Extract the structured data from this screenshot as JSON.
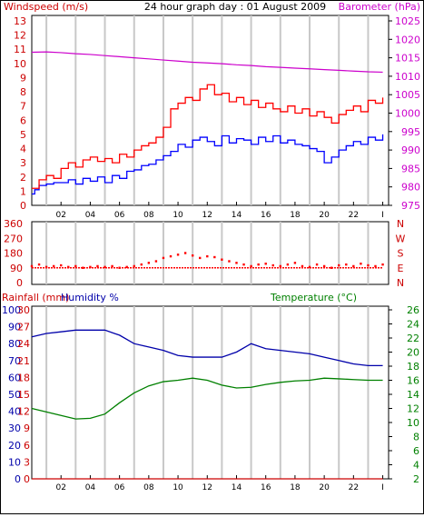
{
  "title": "24 hour graph day : 01 August 2009",
  "colors": {
    "windspeed": "#0000ff",
    "gust": "#ff0000",
    "barometer": "#cc00cc",
    "direction": "#ff0000",
    "humidity": "#0000aa",
    "temperature": "#008000",
    "rainfall": "#cc0000",
    "grid": "#c8c8c8",
    "panel_bg": "#ffffff"
  },
  "chart_data": [
    {
      "type": "line",
      "panel": "wind_baro",
      "title": "24 hour graph day : 01 August 2009",
      "left_label": "Windspeed (m/s)",
      "right_label": "Barometer (hPa)",
      "x_ticks": [
        "02",
        "04",
        "06",
        "08",
        "10",
        "12",
        "14",
        "16",
        "18",
        "20",
        "22",
        "I"
      ],
      "ylim_left": [
        0,
        13
      ],
      "yticks_left": [
        "0",
        "1",
        "2",
        "3",
        "4",
        "5",
        "6",
        "7",
        "8",
        "9",
        "10",
        "11",
        "12",
        "13"
      ],
      "ylim_right": [
        975,
        1025
      ],
      "yticks_right": [
        "975",
        "980",
        "985",
        "990",
        "995",
        "1000",
        "1005",
        "1010",
        "1015",
        "1020",
        "1025"
      ],
      "x_range_hours": [
        0,
        24.4
      ],
      "series": [
        {
          "name": "Windspeed (m/s)",
          "axis": "left",
          "color": "#0000ff",
          "step": true,
          "x": [
            0,
            0.2,
            0.5,
            1,
            1.5,
            2,
            2.5,
            3,
            3.5,
            4,
            4.5,
            5,
            5.5,
            6,
            6.5,
            7,
            7.5,
            8,
            8.5,
            9,
            9.5,
            10,
            10.5,
            11,
            11.5,
            12,
            12.5,
            13,
            13.5,
            14,
            14.5,
            15,
            15.5,
            16,
            16.5,
            17,
            17.5,
            18,
            18.5,
            19,
            19.5,
            20,
            20.5,
            21,
            21.5,
            22,
            22.5,
            23,
            23.5,
            24
          ],
          "values": [
            0.8,
            1.1,
            1.4,
            1.5,
            1.6,
            1.6,
            1.8,
            1.5,
            1.9,
            1.7,
            2.0,
            1.6,
            2.1,
            1.9,
            2.4,
            2.5,
            2.8,
            2.9,
            3.2,
            3.5,
            3.8,
            4.3,
            4.1,
            4.6,
            4.8,
            4.5,
            4.2,
            4.9,
            4.4,
            4.7,
            4.6,
            4.3,
            4.8,
            4.5,
            4.9,
            4.4,
            4.6,
            4.3,
            4.2,
            4.0,
            3.8,
            3.0,
            3.4,
            3.9,
            4.2,
            4.5,
            4.3,
            4.8,
            4.6,
            5.0
          ]
        },
        {
          "name": "Gust (m/s)",
          "axis": "left",
          "color": "#ff0000",
          "step": true,
          "x": [
            0,
            0.5,
            1,
            1.5,
            2,
            2.5,
            3,
            3.5,
            4,
            4.5,
            5,
            5.5,
            6,
            6.5,
            7,
            7.5,
            8,
            8.5,
            9,
            9.5,
            10,
            10.5,
            11,
            11.5,
            12,
            12.5,
            13,
            13.5,
            14,
            14.5,
            15,
            15.5,
            16,
            16.5,
            17,
            17.5,
            18,
            18.5,
            19,
            19.5,
            20,
            20.5,
            21,
            21.5,
            22,
            22.5,
            23,
            23.5,
            24
          ],
          "values": [
            1.2,
            1.8,
            2.1,
            1.9,
            2.6,
            3.0,
            2.7,
            3.2,
            3.4,
            3.1,
            3.3,
            3.0,
            3.6,
            3.4,
            3.9,
            4.2,
            4.4,
            4.8,
            5.5,
            6.8,
            7.2,
            7.6,
            7.4,
            8.2,
            8.5,
            7.8,
            7.9,
            7.3,
            7.6,
            7.1,
            7.4,
            6.9,
            7.2,
            6.8,
            6.6,
            7.0,
            6.5,
            6.8,
            6.3,
            6.6,
            6.2,
            5.8,
            6.4,
            6.7,
            7.0,
            6.6,
            7.4,
            7.2,
            7.6
          ]
        },
        {
          "name": "Barometer (hPa)",
          "axis": "right",
          "color": "#cc00cc",
          "step": false,
          "x": [
            0,
            1,
            2,
            3,
            4,
            5,
            6,
            7,
            8,
            9,
            10,
            11,
            12,
            13,
            14,
            15,
            16,
            17,
            18,
            19,
            20,
            21,
            22,
            23,
            24
          ],
          "values": [
            1016.5,
            1016.6,
            1016.4,
            1016.1,
            1015.9,
            1015.6,
            1015.3,
            1015.0,
            1014.7,
            1014.4,
            1014.1,
            1013.8,
            1013.6,
            1013.4,
            1013.1,
            1012.9,
            1012.6,
            1012.4,
            1012.2,
            1012.0,
            1011.8,
            1011.6,
            1011.4,
            1011.2,
            1011.1
          ]
        }
      ]
    },
    {
      "type": "scatter",
      "panel": "direction",
      "ylabel_ticks_left": [
        "360",
        "270",
        "180",
        "90",
        "0"
      ],
      "ylabel_ticks_right": [
        "N",
        "W",
        "S",
        "E",
        "N"
      ],
      "ylim": [
        0,
        360
      ],
      "x_range_hours": [
        0,
        24.4
      ],
      "series": [
        {
          "name": "Wind direction",
          "color": "#ff0000",
          "x": [
            0,
            0.5,
            1,
            1.5,
            2,
            2.5,
            3,
            3.5,
            4,
            4.5,
            5,
            5.5,
            6,
            6.5,
            7,
            7.5,
            8,
            8.5,
            9,
            9.5,
            10,
            10.5,
            11,
            11.5,
            12,
            12.5,
            13,
            13.5,
            14,
            14.5,
            15,
            15.5,
            16,
            16.5,
            17,
            17.5,
            18,
            18.5,
            19,
            19.5,
            20,
            20.5,
            21,
            21.5,
            22,
            22.5,
            23,
            23.5,
            24
          ],
          "values": [
            100,
            110,
            95,
            100,
            105,
            95,
            100,
            90,
            95,
            100,
            95,
            100,
            90,
            95,
            100,
            110,
            120,
            130,
            150,
            160,
            170,
            180,
            165,
            150,
            160,
            155,
            140,
            130,
            120,
            110,
            100,
            110,
            115,
            105,
            100,
            110,
            120,
            100,
            95,
            110,
            100,
            90,
            105,
            110,
            100,
            115,
            105,
            100,
            110
          ]
        }
      ]
    },
    {
      "type": "line",
      "panel": "rain_hum_temp",
      "left_label": "Rainfall (mm)",
      "left_label2": "Humidity %",
      "right_label": "Temperature (°C)",
      "yticks_left_rain": [
        "0",
        "3",
        "6",
        "9",
        "12",
        "15",
        "18",
        "21",
        "24",
        "27",
        "30"
      ],
      "yticks_left_hum": [
        "0",
        "10",
        "20",
        "30",
        "40",
        "50",
        "60",
        "70",
        "80",
        "90",
        "100"
      ],
      "ylim_left": [
        0,
        100
      ],
      "ylim_right": [
        2,
        26
      ],
      "yticks_right": [
        "2",
        "4",
        "6",
        "8",
        "10",
        "12",
        "14",
        "16",
        "18",
        "20",
        "22",
        "24",
        "26"
      ],
      "x_ticks": [
        "02",
        "04",
        "06",
        "08",
        "10",
        "12",
        "14",
        "16",
        "18",
        "20",
        "22",
        "I"
      ],
      "x_range_hours": [
        0,
        24.4
      ],
      "series": [
        {
          "name": "Humidity %",
          "axis": "left",
          "color": "#0000aa",
          "x": [
            0,
            1,
            2,
            3,
            4,
            5,
            6,
            7,
            8,
            9,
            10,
            11,
            12,
            13,
            14,
            15,
            16,
            17,
            18,
            19,
            20,
            21,
            22,
            23,
            24
          ],
          "values": [
            84,
            86,
            87,
            88,
            88,
            88,
            85,
            80,
            78,
            76,
            73,
            72,
            72,
            72,
            75,
            80,
            77,
            76,
            75,
            74,
            72,
            70,
            68,
            67,
            67
          ]
        },
        {
          "name": "Temperature (°C)",
          "axis": "right",
          "color": "#008000",
          "x": [
            0,
            1,
            2,
            3,
            4,
            5,
            6,
            7,
            8,
            9,
            10,
            11,
            12,
            13,
            14,
            15,
            16,
            17,
            18,
            19,
            20,
            21,
            22,
            23,
            24
          ],
          "values": [
            12.0,
            11.5,
            11.0,
            10.5,
            10.6,
            11.2,
            12.8,
            14.2,
            15.2,
            15.8,
            16.0,
            16.3,
            16.0,
            15.3,
            14.9,
            15.0,
            15.4,
            15.7,
            15.9,
            16.0,
            16.3,
            16.2,
            16.1,
            16.0,
            16.0
          ]
        },
        {
          "name": "Rainfall (mm)",
          "axis": "left",
          "color": "#cc0000",
          "x": [
            0,
            24
          ],
          "values": [
            0,
            0
          ]
        }
      ]
    }
  ]
}
